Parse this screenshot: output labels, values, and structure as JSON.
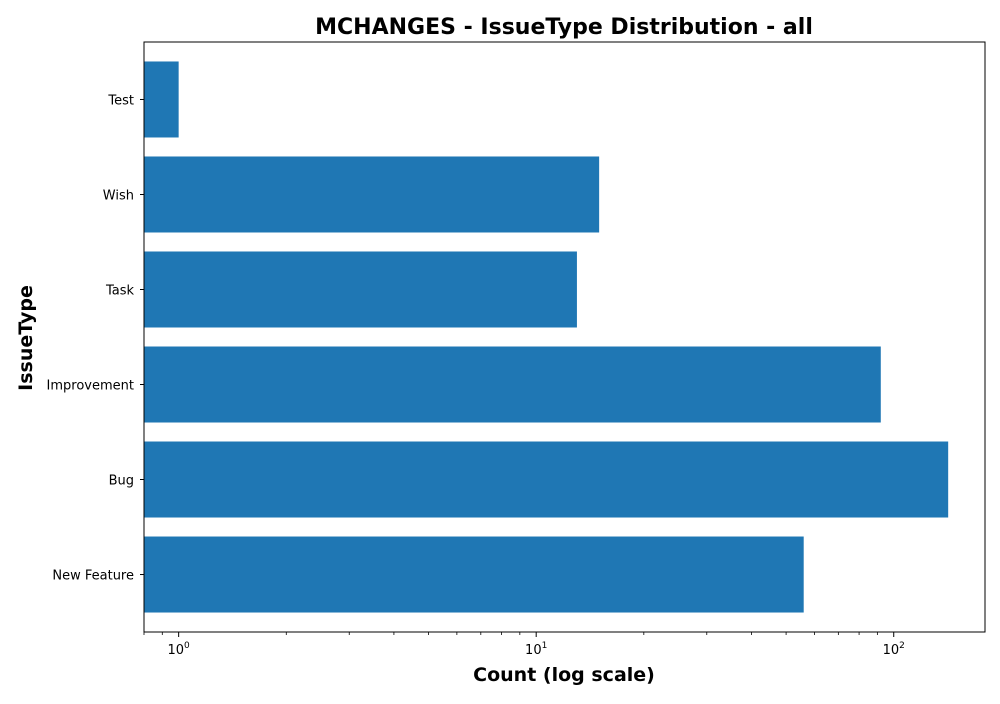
{
  "chart_data": {
    "type": "bar",
    "orientation": "horizontal",
    "title": "MCHANGES - IssueType Distribution - all",
    "xlabel": "Count (log scale)",
    "ylabel": "IssueType",
    "xscale": "log",
    "xlim": [
      0.8,
      180
    ],
    "xticks": [
      {
        "value": 1,
        "base": "10",
        "exp": "0"
      },
      {
        "value": 10,
        "base": "10",
        "exp": "1"
      },
      {
        "value": 100,
        "base": "10",
        "exp": "2"
      }
    ],
    "categories": [
      "New Feature",
      "Bug",
      "Improvement",
      "Task",
      "Wish",
      "Test"
    ],
    "values": [
      56,
      142,
      92,
      13,
      15,
      1
    ],
    "bar_color": "#1f77b4",
    "grid": false,
    "legend": false
  }
}
